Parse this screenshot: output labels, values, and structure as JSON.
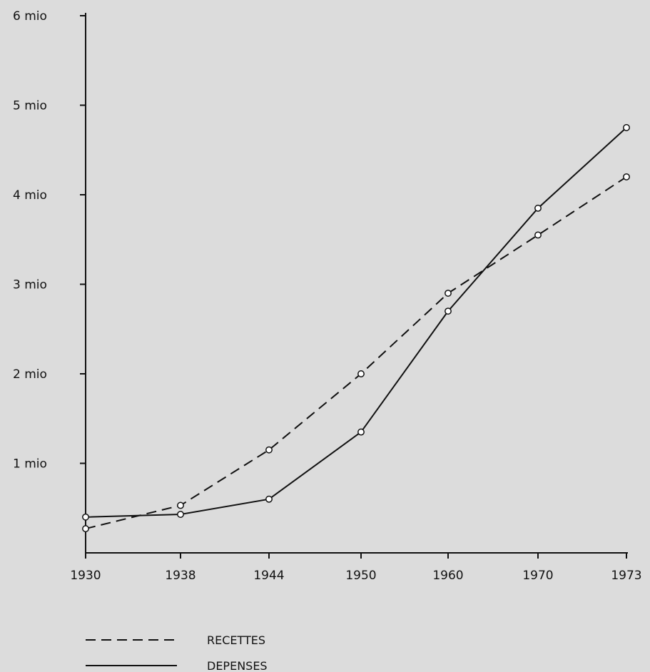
{
  "chart_data": {
    "type": "line",
    "x": [
      "1930",
      "1938",
      "1944",
      "1950",
      "1960",
      "1970",
      "1973"
    ],
    "series": [
      {
        "name": "RECETTES",
        "style": "dashed",
        "values": [
          0.27,
          0.53,
          1.15,
          2.0,
          2.9,
          3.55,
          4.2
        ]
      },
      {
        "name": "DEPENSES",
        "style": "solid",
        "values": [
          0.4,
          0.43,
          0.6,
          1.35,
          2.7,
          3.85,
          4.75
        ]
      }
    ],
    "y_ticks": [
      "1 mio",
      "2 mio",
      "3 mio",
      "4 mio",
      "5 mio",
      "6 mio"
    ],
    "y_tick_values": [
      1,
      2,
      3,
      4,
      5,
      6
    ],
    "ylim": [
      0,
      6
    ],
    "grid": false,
    "legend_position": "bottom-left",
    "colors": {
      "line": "#111111",
      "background": "#dcdcdc",
      "marker_fill": "#ffffff"
    }
  }
}
